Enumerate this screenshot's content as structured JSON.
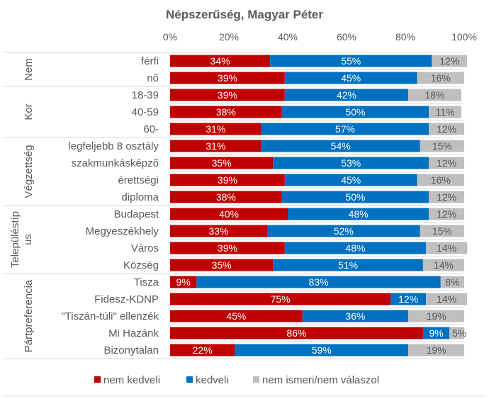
{
  "chart_data": {
    "type": "bar",
    "orientation": "horizontal",
    "stacked": true,
    "title": "Népszerűség, Magyar Péter",
    "xlim": [
      0,
      100
    ],
    "xticks": [
      "0%",
      "20%",
      "40%",
      "60%",
      "80%",
      "100%"
    ],
    "legend_position": "bottom",
    "colors": {
      "nem kedveli": "#C00000",
      "kedveli": "#0070C0",
      "nem ismeri/nem válaszol": "#BFBFBF"
    },
    "groups": [
      {
        "name": "Nem",
        "categories": [
          "férfi",
          "nő"
        ]
      },
      {
        "name": "Kor",
        "categories": [
          "18-39",
          "40-59",
          "60-"
        ]
      },
      {
        "name": "Végzettség",
        "categories": [
          "legfeljebb 8 osztály",
          "szakmunkásképző",
          "érettségi",
          "diploma"
        ]
      },
      {
        "name": "Településtípus",
        "name_lines": [
          "Településtíp",
          "us"
        ],
        "categories": [
          "Budapest",
          "Megyeszékhely",
          "Város",
          "Község"
        ]
      },
      {
        "name": "Pártpreferencia",
        "categories": [
          "Tisza",
          "Fidesz-KDNP",
          "\"Tiszán-túli\" ellenzék",
          "Mi Hazánk",
          "Bizonytalan"
        ]
      }
    ],
    "series": [
      {
        "name": "nem kedveli",
        "values": [
          34,
          39,
          39,
          38,
          31,
          31,
          35,
          39,
          38,
          40,
          33,
          39,
          35,
          9,
          75,
          45,
          86,
          22
        ]
      },
      {
        "name": "kedveli",
        "values": [
          55,
          45,
          42,
          50,
          57,
          54,
          53,
          45,
          50,
          48,
          52,
          48,
          51,
          83,
          12,
          36,
          9,
          59
        ]
      },
      {
        "name": "nem ismeri/nem válaszol",
        "values": [
          12,
          16,
          18,
          11,
          12,
          15,
          12,
          16,
          12,
          12,
          15,
          14,
          14,
          8,
          14,
          19,
          5,
          19
        ]
      }
    ]
  }
}
